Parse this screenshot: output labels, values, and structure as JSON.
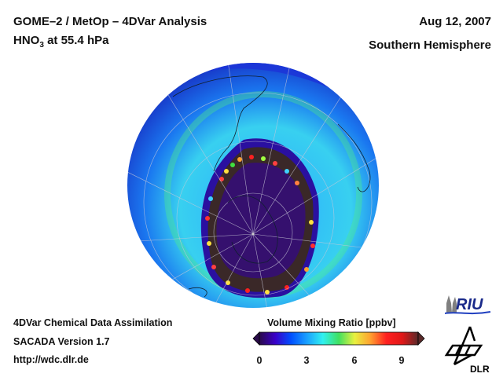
{
  "header": {
    "title_line1": "GOME–2 / MetOp – 4DVar Analysis",
    "species_main": "HNO",
    "species_sub": "3",
    "species_rest": " at 55.4 hPa",
    "date": "Aug 12, 2007",
    "region": "Southern Hemisphere"
  },
  "footer": {
    "line1": "4DVar Chemical Data Assimilation",
    "line2": "SACADA Version 1.7",
    "line3": "http://wdc.dlr.de"
  },
  "colorbar": {
    "title": "Volume Mixing Ratio [ppbv]",
    "ticks": [
      "0",
      "3",
      "6",
      "9"
    ],
    "colors": [
      "#2a0a4a",
      "#3a00c8",
      "#0050ff",
      "#1aa0ff",
      "#30f0f0",
      "#40e060",
      "#e8f040",
      "#ffa030",
      "#ff2020",
      "#e01818",
      "#5a2a2a"
    ]
  },
  "map": {
    "projection": "orthographic south polar",
    "variable": "HNO3",
    "units": "ppbv",
    "features": [
      "polar vortex denitrified core (~0-1 ppbv)",
      "vortex edge collar (>10 ppbv)",
      "mid-latitude band (~2-5 ppbv)"
    ]
  },
  "logos": {
    "riu": "RIU",
    "dlr": "DLR"
  }
}
